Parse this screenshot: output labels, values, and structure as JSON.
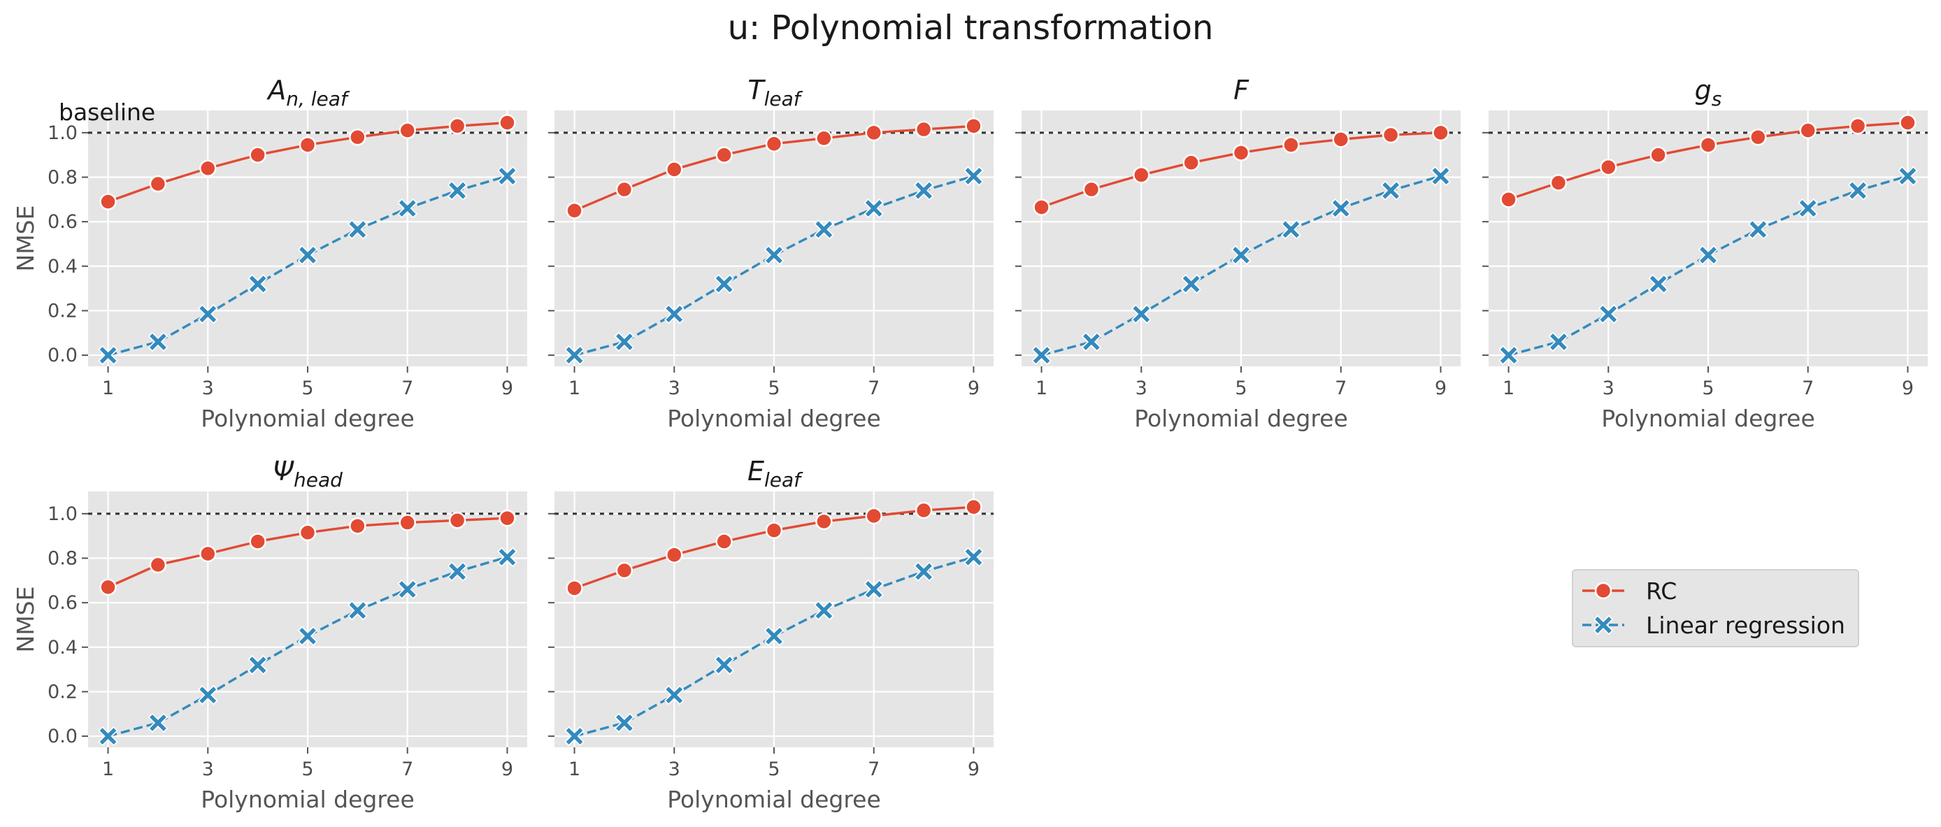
{
  "figure": {
    "suptitle": "u: Polynomial transformation",
    "baseline_label": "baseline",
    "colors": {
      "RC": "#E24A33",
      "Linear regression": "#348ABD",
      "panel_bg": "#E5E5E5",
      "grid": "#FFFFFF",
      "baseline": "#333333"
    }
  },
  "legend": {
    "placement": "lower-right (empty grid area)",
    "entries": [
      {
        "label": "RC",
        "marker": "circle",
        "line": "solid",
        "color": "#E24A33"
      },
      {
        "label": "Linear regression",
        "marker": "x-filled",
        "line": "dashed",
        "color": "#348ABD"
      }
    ]
  },
  "chart_data": [
    {
      "type": "line",
      "title": {
        "main": "A",
        "sub": "n, leaf"
      },
      "xlabel": "Polynomial degree",
      "ylabel": "NMSE",
      "x": [
        1,
        2,
        3,
        4,
        5,
        6,
        7,
        8,
        9
      ],
      "xticks": [
        "1",
        "3",
        "5",
        "7",
        "9"
      ],
      "yticks": [
        "0.0",
        "0.2",
        "0.4",
        "0.6",
        "0.8",
        "1.0"
      ],
      "ylim": [
        -0.05,
        1.1
      ],
      "xlim": [
        0.6,
        9.4
      ],
      "grid": true,
      "baseline_y": 1.0,
      "series": [
        {
          "name": "RC",
          "values": [
            0.69,
            0.77,
            0.84,
            0.9,
            0.945,
            0.98,
            1.01,
            1.03,
            1.045
          ]
        },
        {
          "name": "Linear regression",
          "values": [
            0.0,
            0.06,
            0.185,
            0.32,
            0.45,
            0.565,
            0.66,
            0.74,
            0.805
          ]
        }
      ]
    },
    {
      "type": "line",
      "title": {
        "main": "T",
        "sub": "leaf"
      },
      "xlabel": "Polynomial degree",
      "ylabel": "",
      "x": [
        1,
        2,
        3,
        4,
        5,
        6,
        7,
        8,
        9
      ],
      "xticks": [
        "1",
        "3",
        "5",
        "7",
        "9"
      ],
      "yticks": [
        "0.0",
        "0.2",
        "0.4",
        "0.6",
        "0.8",
        "1.0"
      ],
      "ylim": [
        -0.05,
        1.1
      ],
      "xlim": [
        0.6,
        9.4
      ],
      "grid": true,
      "baseline_y": 1.0,
      "series": [
        {
          "name": "RC",
          "values": [
            0.65,
            0.745,
            0.835,
            0.9,
            0.95,
            0.975,
            1.0,
            1.015,
            1.03
          ]
        },
        {
          "name": "Linear regression",
          "values": [
            0.0,
            0.06,
            0.185,
            0.32,
            0.45,
            0.565,
            0.66,
            0.74,
            0.805
          ]
        }
      ]
    },
    {
      "type": "line",
      "title": {
        "main": "F",
        "sub": ""
      },
      "xlabel": "Polynomial degree",
      "ylabel": "",
      "x": [
        1,
        2,
        3,
        4,
        5,
        6,
        7,
        8,
        9
      ],
      "xticks": [
        "1",
        "3",
        "5",
        "7",
        "9"
      ],
      "yticks": [
        "0.0",
        "0.2",
        "0.4",
        "0.6",
        "0.8",
        "1.0"
      ],
      "ylim": [
        -0.05,
        1.1
      ],
      "xlim": [
        0.6,
        9.4
      ],
      "grid": true,
      "baseline_y": 1.0,
      "series": [
        {
          "name": "RC",
          "values": [
            0.665,
            0.745,
            0.81,
            0.865,
            0.91,
            0.945,
            0.97,
            0.99,
            1.0
          ]
        },
        {
          "name": "Linear regression",
          "values": [
            0.0,
            0.06,
            0.185,
            0.32,
            0.45,
            0.565,
            0.66,
            0.74,
            0.805
          ]
        }
      ]
    },
    {
      "type": "line",
      "title": {
        "main": "g",
        "sub": "s"
      },
      "xlabel": "Polynomial degree",
      "ylabel": "",
      "x": [
        1,
        2,
        3,
        4,
        5,
        6,
        7,
        8,
        9
      ],
      "xticks": [
        "1",
        "3",
        "5",
        "7",
        "9"
      ],
      "yticks": [
        "0.0",
        "0.2",
        "0.4",
        "0.6",
        "0.8",
        "1.0"
      ],
      "ylim": [
        -0.05,
        1.1
      ],
      "xlim": [
        0.6,
        9.4
      ],
      "grid": true,
      "baseline_y": 1.0,
      "series": [
        {
          "name": "RC",
          "values": [
            0.7,
            0.775,
            0.845,
            0.9,
            0.945,
            0.98,
            1.01,
            1.03,
            1.045
          ]
        },
        {
          "name": "Linear regression",
          "values": [
            0.0,
            0.06,
            0.185,
            0.32,
            0.45,
            0.565,
            0.66,
            0.74,
            0.805
          ]
        }
      ]
    },
    {
      "type": "line",
      "title": {
        "main": "Ψ",
        "sub": "head"
      },
      "xlabel": "Polynomial degree",
      "ylabel": "NMSE",
      "x": [
        1,
        2,
        3,
        4,
        5,
        6,
        7,
        8,
        9
      ],
      "xticks": [
        "1",
        "3",
        "5",
        "7",
        "9"
      ],
      "yticks": [
        "0.0",
        "0.2",
        "0.4",
        "0.6",
        "0.8",
        "1.0"
      ],
      "ylim": [
        -0.05,
        1.1
      ],
      "xlim": [
        0.6,
        9.4
      ],
      "grid": true,
      "baseline_y": 1.0,
      "series": [
        {
          "name": "RC",
          "values": [
            0.67,
            0.77,
            0.82,
            0.875,
            0.915,
            0.945,
            0.96,
            0.97,
            0.98
          ]
        },
        {
          "name": "Linear regression",
          "values": [
            0.0,
            0.06,
            0.185,
            0.32,
            0.45,
            0.565,
            0.66,
            0.74,
            0.805
          ]
        }
      ]
    },
    {
      "type": "line",
      "title": {
        "main": "E",
        "sub": "leaf"
      },
      "xlabel": "Polynomial degree",
      "ylabel": "",
      "x": [
        1,
        2,
        3,
        4,
        5,
        6,
        7,
        8,
        9
      ],
      "xticks": [
        "1",
        "3",
        "5",
        "7",
        "9"
      ],
      "yticks": [
        "0.0",
        "0.2",
        "0.4",
        "0.6",
        "0.8",
        "1.0"
      ],
      "ylim": [
        -0.05,
        1.1
      ],
      "xlim": [
        0.6,
        9.4
      ],
      "grid": true,
      "baseline_y": 1.0,
      "series": [
        {
          "name": "RC",
          "values": [
            0.665,
            0.745,
            0.815,
            0.875,
            0.925,
            0.965,
            0.99,
            1.015,
            1.03
          ]
        },
        {
          "name": "Linear regression",
          "values": [
            0.0,
            0.06,
            0.185,
            0.32,
            0.45,
            0.565,
            0.66,
            0.74,
            0.805
          ]
        }
      ]
    }
  ]
}
